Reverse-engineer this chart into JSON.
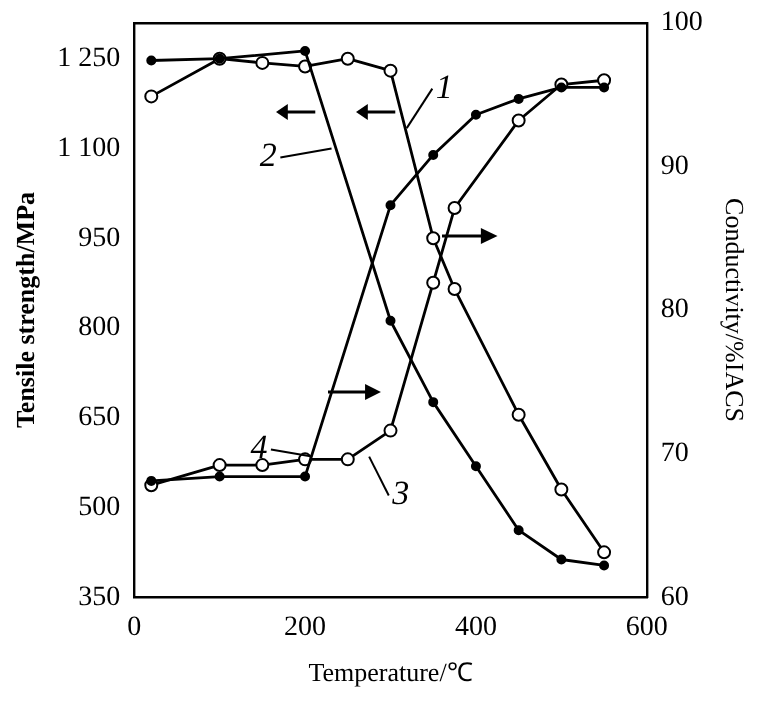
{
  "chart_data": {
    "type": "line",
    "xlabel": "Temperature/℃",
    "ylabel": "Tensile strength/MPa",
    "y2label": "Conductivity/%IACS",
    "xlim": [
      0,
      600
    ],
    "xticks": [
      0,
      200,
      400,
      600
    ],
    "ylim": [
      350,
      1310
    ],
    "yticks": [
      350,
      500,
      650,
      800,
      950,
      {
        "value": 1100,
        "label": "1 100"
      },
      {
        "value": 1250,
        "label": "1 250"
      }
    ],
    "y2lim": [
      60,
      100
    ],
    "y2ticks": [
      60,
      70,
      80,
      90,
      100
    ],
    "grid": false,
    "legend": "center",
    "marker": "circle",
    "line_style": "solid",
    "series": [
      {
        "name": "1",
        "color": "#000000",
        "x": [
          20,
          100,
          150,
          200,
          250,
          300,
          350,
          375,
          450,
          500,
          550
        ],
        "values": [
          1187,
          1250,
          1243,
          1237,
          1250,
          1230,
          950,
          865,
          655,
          530,
          425
        ]
      },
      {
        "name": "2",
        "color": "#000000",
        "x": [
          20,
          100,
          200,
          300,
          350,
          400,
          450,
          500,
          550
        ],
        "values": [
          1247,
          1250,
          1263,
          812,
          676,
          569,
          462,
          413,
          403
        ]
      },
      {
        "name": "3",
        "color": "#000000",
        "axis": "y2",
        "x": [
          20,
          100,
          150,
          200,
          250,
          300,
          350,
          375,
          450,
          500,
          550
        ],
        "values": [
          67.8,
          69.2,
          69.2,
          69.6,
          69.6,
          71.6,
          81.9,
          87.1,
          93.2,
          95.7,
          96.0
        ]
      },
      {
        "name": "4",
        "color": "#000000",
        "axis": "y2",
        "x": [
          20,
          100,
          200,
          300,
          350,
          400,
          450,
          500,
          550
        ],
        "values": [
          68.1,
          68.4,
          68.4,
          87.3,
          90.8,
          93.6,
          94.7,
          95.5,
          95.5
        ]
      }
    ]
  }
}
